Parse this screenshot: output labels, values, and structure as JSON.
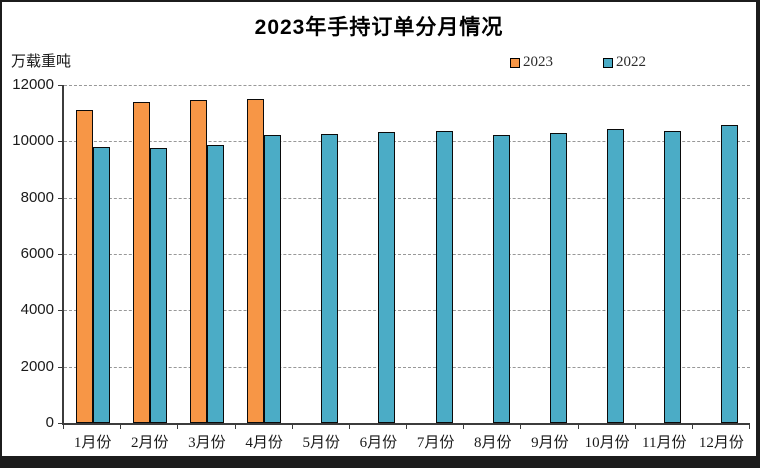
{
  "title": "2023年手持订单分月情况",
  "y_axis_unit": "万载重吨",
  "legend": {
    "items": [
      {
        "label": "2023",
        "color": "#F79646"
      },
      {
        "label": "2022",
        "color": "#4BACC6"
      }
    ]
  },
  "colors": {
    "series_2023": "#F79646",
    "series_2022": "#4BACC6",
    "bar_border": "#0a0a0a",
    "gridline": "#989898",
    "axis": "#3c3c3c",
    "frame": "#1c1c1c"
  },
  "chart_data": {
    "type": "bar",
    "title": "2023年手持订单分月情况",
    "ylabel": "万载重吨",
    "categories": [
      "1月份",
      "2月份",
      "3月份",
      "4月份",
      "5月份",
      "6月份",
      "7月份",
      "8月份",
      "9月份",
      "10月份",
      "11月份",
      "12月份"
    ],
    "series": [
      {
        "name": "2023",
        "color": "#F79646",
        "values": [
          11110,
          11380,
          11460,
          11510,
          null,
          null,
          null,
          null,
          null,
          null,
          null,
          null
        ]
      },
      {
        "name": "2022",
        "color": "#4BACC6",
        "values": [
          9800,
          9780,
          9860,
          10210,
          10250,
          10330,
          10370,
          10220,
          10300,
          10430,
          10360,
          10570
        ]
      }
    ],
    "ylim": [
      0,
      12000
    ],
    "ytick_interval": 2000,
    "ytick_labels": [
      "0",
      "2000",
      "4000",
      "6000",
      "8000",
      "10000",
      "12000"
    ],
    "grid": true,
    "legend_position": "top-right"
  }
}
